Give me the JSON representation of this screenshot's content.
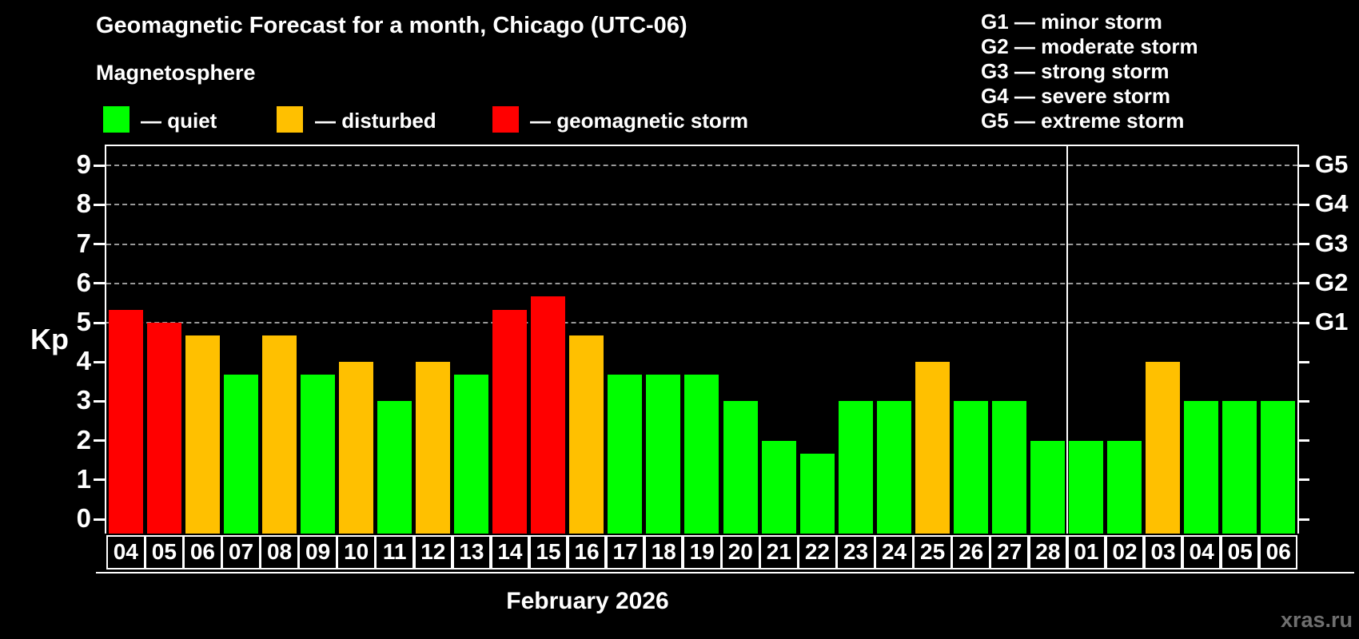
{
  "title": "Geomagnetic Forecast for a month, Chicago (UTC-06)",
  "subtitle": "Magnetosphere",
  "legend": {
    "items": [
      {
        "label": "— quiet",
        "status": "quiet"
      },
      {
        "label": "— disturbed",
        "status": "disturbed"
      },
      {
        "label": "— geomagnetic storm",
        "status": "storm"
      }
    ]
  },
  "g_scale": {
    "items": [
      "G1 — minor storm",
      "G2 — moderate storm",
      "G3 — strong storm",
      "G4 — severe storm",
      "G5 — extreme storm"
    ]
  },
  "axes": {
    "y_label": "Kp",
    "y_ticks": [
      0,
      1,
      2,
      3,
      4,
      5,
      6,
      7,
      8,
      9
    ],
    "right_ticks": [
      {
        "label": "G1",
        "kp": 5
      },
      {
        "label": "G2",
        "kp": 6
      },
      {
        "label": "G3",
        "kp": 7
      },
      {
        "label": "G4",
        "kp": 8
      },
      {
        "label": "G5",
        "kp": 9
      }
    ],
    "x_axis_title": "February 2026"
  },
  "colors": {
    "quiet": "#00ff00",
    "disturbed": "#ffc000",
    "storm": "#ff0000",
    "background": "#000000",
    "text": "#ffffff",
    "grid": "#999999",
    "watermark": "#6f6f6f"
  },
  "chart_data": {
    "type": "bar",
    "title": "Geomagnetic Forecast for a month, Chicago (UTC-06)",
    "ylabel": "Kp",
    "xlabel": "February 2026",
    "ylim": [
      0,
      9.4
    ],
    "grid": "horizontal dashed lines at Kp 5,6,7,8,9",
    "legend_position": "top-left",
    "categories": [
      "04",
      "05",
      "06",
      "07",
      "08",
      "09",
      "10",
      "11",
      "12",
      "13",
      "14",
      "15",
      "16",
      "17",
      "18",
      "19",
      "20",
      "21",
      "22",
      "23",
      "24",
      "25",
      "26",
      "27",
      "28",
      "01",
      "02",
      "03",
      "04",
      "05",
      "06"
    ],
    "values": [
      5.33,
      5.0,
      4.67,
      3.67,
      4.67,
      3.67,
      4.0,
      3.0,
      4.0,
      3.67,
      5.33,
      5.67,
      4.67,
      3.67,
      3.67,
      3.67,
      3.0,
      2.0,
      1.67,
      3.0,
      3.0,
      4.0,
      3.0,
      3.0,
      2.0,
      2.0,
      2.0,
      4.0,
      3.0,
      3.0,
      3.0
    ],
    "bar_status": [
      "storm",
      "storm",
      "disturbed",
      "quiet",
      "disturbed",
      "quiet",
      "disturbed",
      "quiet",
      "disturbed",
      "quiet",
      "storm",
      "storm",
      "disturbed",
      "quiet",
      "quiet",
      "quiet",
      "quiet",
      "quiet",
      "quiet",
      "quiet",
      "quiet",
      "disturbed",
      "quiet",
      "quiet",
      "quiet",
      "quiet",
      "quiet",
      "disturbed",
      "quiet",
      "quiet",
      "quiet"
    ],
    "month_boundary_after_index": 24,
    "kp_storm_threshold_labels": {
      "G1": 5,
      "G2": 6,
      "G3": 7,
      "G4": 8,
      "G5": 9
    }
  },
  "watermark": "xras.ru"
}
